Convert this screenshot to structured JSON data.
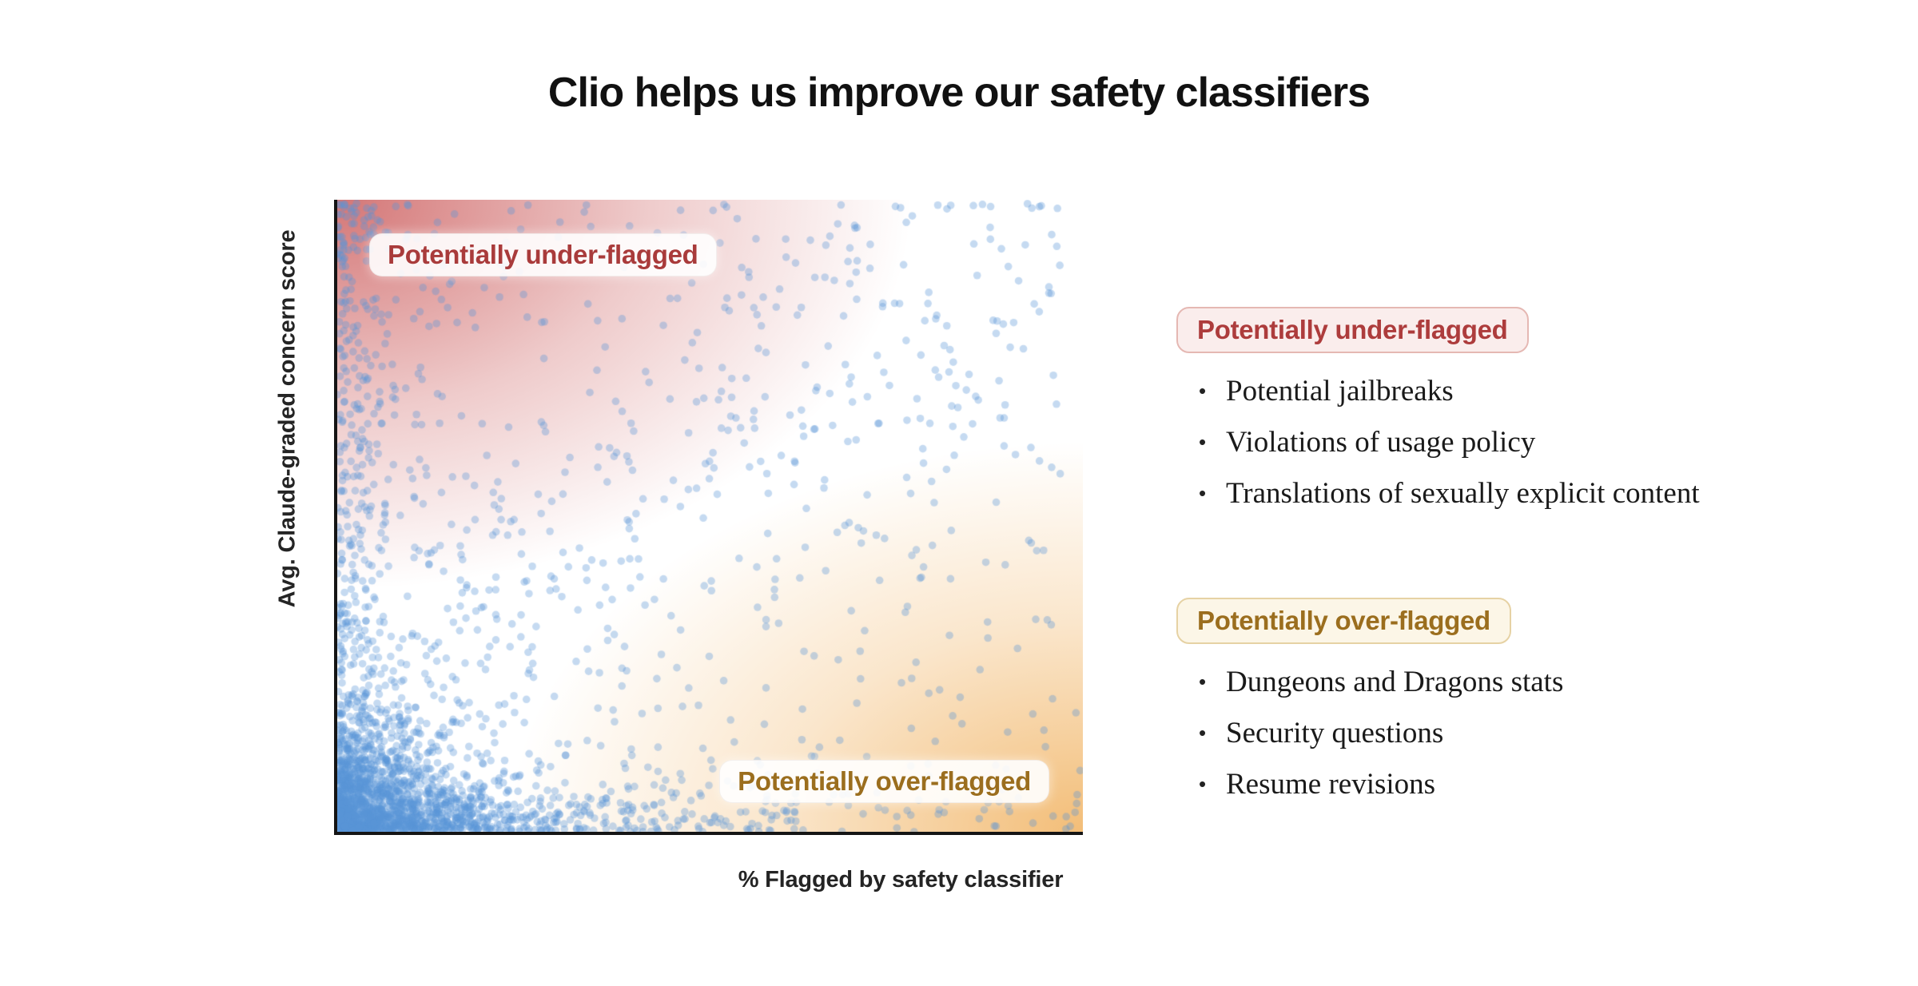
{
  "page": {
    "title": "Clio helps us improve our safety classifiers",
    "background": "#ffffff"
  },
  "chart": {
    "x_label": "% Flagged by safety classifier",
    "y_label": "Avg. Claude-graded concern score",
    "annotations": {
      "under": {
        "label": "Potentially under-flagged",
        "text_color": "#a93b3b"
      },
      "over": {
        "label": "Potentially over-flagged",
        "text_color": "#9b6e1e"
      }
    }
  },
  "legend": {
    "groups": [
      {
        "id": "potentially-under-flagged",
        "badge": "Potentially under-flagged",
        "text_color": "#ad3c3c",
        "badge_bg": "#faedec",
        "badge_border": "#e5b8b3",
        "items": [
          "Potential jailbreaks",
          "Violations of usage policy",
          "Translations of sexually explicit content"
        ]
      },
      {
        "id": "potentially-over-flagged",
        "badge": "Potentially over-flagged",
        "text_color": "#9b6e1e",
        "badge_bg": "#fcf6e7",
        "badge_border": "#e6d2a4",
        "items": [
          "Dungeons and Dragons stats",
          "Security questions",
          "Resume revisions"
        ]
      }
    ]
  },
  "chart_data": {
    "type": "scatter",
    "title": "Clio helps us improve our safety classifiers",
    "xlabel": "% Flagged by safety classifier",
    "ylabel": "Avg. Claude-graded concern score",
    "xlim": [
      0,
      1
    ],
    "ylim": [
      0,
      1
    ],
    "ticks": "none",
    "grid": false,
    "point_color": "#5a95d8",
    "point_opacity": 0.35,
    "point_radius_px": 4.8,
    "n_points": 2900,
    "seed": 1234,
    "distribution_note": "Density estimated from pixels: heavy cluster at origin (low flag rate, low concern), column up left edge, band along bottom edge, diffuse diagonal cloud rising to top-right, sparse elsewhere.",
    "components": [
      {
        "name": "dense-origin-cluster",
        "weight": 0.53,
        "x": {
          "dist": "exp",
          "scale": 0.075
        },
        "y": {
          "dist": "exp",
          "scale": 0.075,
          "taper_x": 0.55
        }
      },
      {
        "name": "bottom-edge-band",
        "weight": 0.1,
        "x": {
          "dist": "pow",
          "exp": 1.4,
          "max": 0.62
        },
        "y": {
          "dist": "exp",
          "scale": 0.035
        }
      },
      {
        "name": "left-edge-column",
        "weight": 0.12,
        "x": {
          "dist": "exp",
          "scale": 0.045
        },
        "y": {
          "dist": "pow",
          "exp": 0.85,
          "max": 1.0
        }
      },
      {
        "name": "diagonal-cloud",
        "weight": 0.16,
        "x": {
          "dist": "pow",
          "exp": 1.35,
          "max": 0.97
        },
        "y": {
          "dist": "linear-noise",
          "intercept": 0.28,
          "slope": 0.5,
          "sigma": 0.2
        }
      },
      {
        "name": "top-band",
        "weight": 0.03,
        "x": {
          "dist": "pow",
          "exp": 1.8,
          "max": 0.85
        },
        "y": {
          "dist": "uniform",
          "min": 0.8,
          "max": 1.0
        }
      },
      {
        "name": "bottom-right-sparse",
        "weight": 0.04,
        "x": {
          "dist": "uniform",
          "min": 0.35,
          "max": 1.0
        },
        "y": {
          "dist": "exp",
          "scale": 0.09
        }
      },
      {
        "name": "uniform-sprinkle",
        "weight": 0.02,
        "x": {
          "dist": "uniform",
          "min": 0.0,
          "max": 1.0
        },
        "y": {
          "dist": "uniform",
          "min": 0.0,
          "max": 1.0
        }
      }
    ],
    "background_gradients": [
      {
        "corner": "top-left",
        "color": "#c85050",
        "max_opacity": 0.78,
        "meaning": "Potentially under-flagged"
      },
      {
        "corner": "bottom-right",
        "color": "#f0af5a",
        "max_opacity": 0.82,
        "meaning": "Potentially over-flagged"
      }
    ],
    "axis_spine_color": "#151515"
  }
}
